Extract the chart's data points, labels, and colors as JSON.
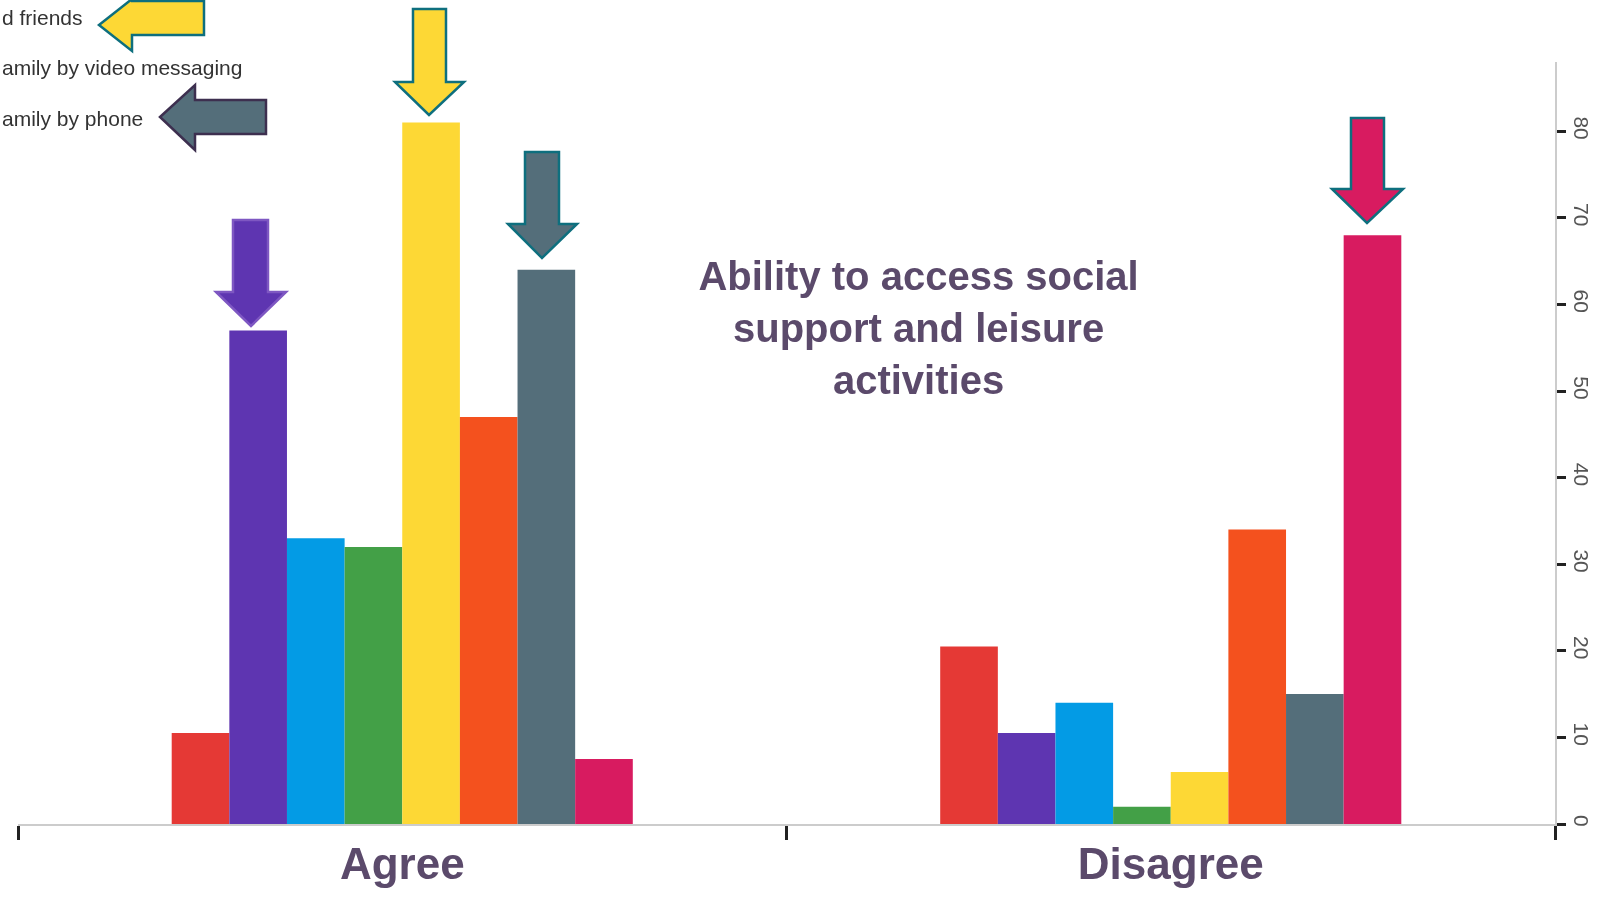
{
  "chart_data": {
    "type": "bar",
    "title": "Ability to access social support and leisure activities",
    "categories": [
      "Agree",
      "Disagree"
    ],
    "series": [
      {
        "color": "#e53935",
        "values": [
          10.5,
          20.5
        ]
      },
      {
        "color": "#5e35b1",
        "values": [
          57,
          10.5
        ]
      },
      {
        "color": "#039be5",
        "values": [
          33,
          14
        ]
      },
      {
        "color": "#43a047",
        "values": [
          32,
          2
        ]
      },
      {
        "color": "#fdd835",
        "values": [
          81,
          6
        ]
      },
      {
        "color": "#f4511e",
        "values": [
          47,
          34
        ]
      },
      {
        "color": "#546e7a",
        "values": [
          64,
          15
        ]
      },
      {
        "color": "#d81b60",
        "values": [
          7.5,
          68
        ]
      }
    ],
    "ylim": [
      0,
      88
    ],
    "yticks": [
      0,
      10,
      20,
      30,
      40,
      50,
      60,
      70,
      80
    ],
    "annotations": [
      "d friends",
      "amily by video messaging",
      "amily by phone"
    ]
  }
}
